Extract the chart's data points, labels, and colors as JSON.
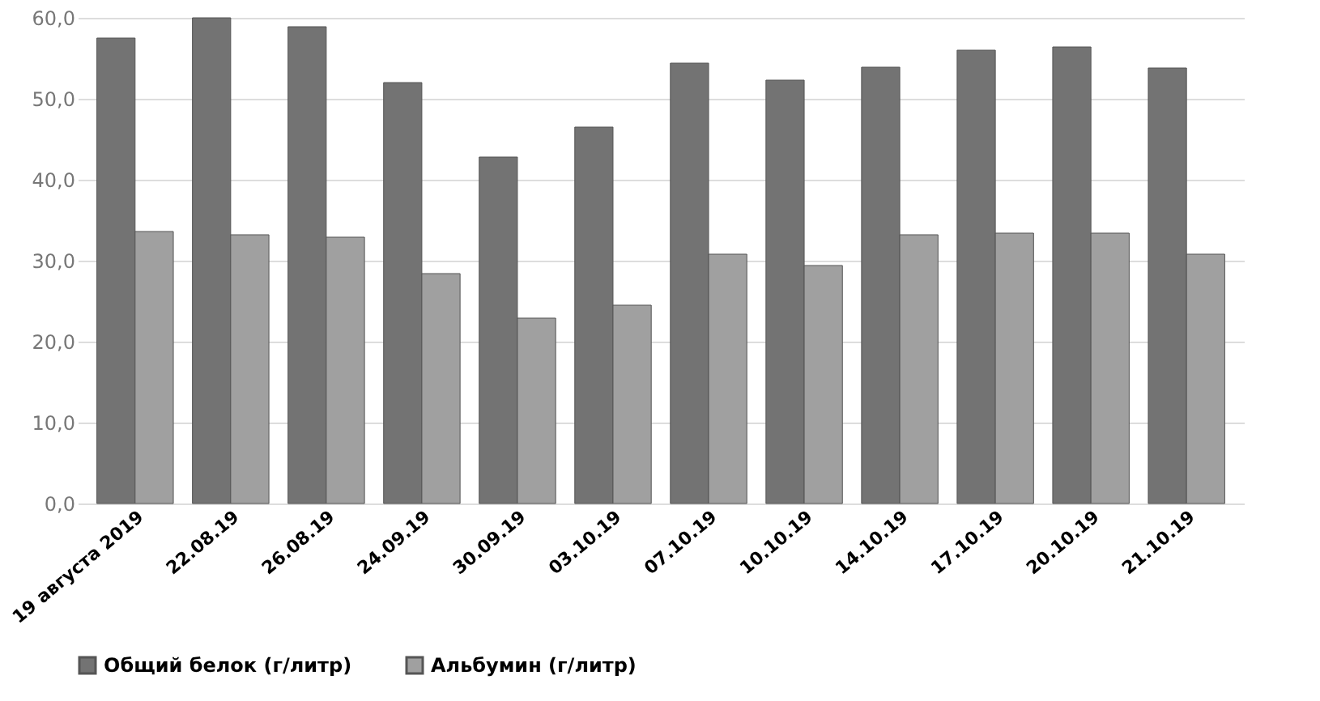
{
  "chart_data": {
    "type": "bar",
    "categories": [
      "19 августа 2019",
      "22.08.19",
      "26.08.19",
      "24.09.19",
      "30.09.19",
      "03.10.19",
      "07.10.19",
      "10.10.19",
      "14.10.19",
      "17.10.19",
      "20.10.19",
      "21.10.19"
    ],
    "series": [
      {
        "name": "Общий белок (г/литр)",
        "color": "#737373",
        "values": [
          57.5,
          60.0,
          58.9,
          52.0,
          42.8,
          46.5,
          54.4,
          52.3,
          53.9,
          56.0,
          56.4,
          53.8
        ]
      },
      {
        "name": "Альбумин (г/литр)",
        "color": "#a0a0a0",
        "values": [
          33.6,
          33.2,
          32.9,
          28.4,
          22.9,
          24.5,
          30.8,
          29.4,
          33.2,
          33.4,
          33.4,
          30.8
        ]
      }
    ],
    "ylim": [
      0,
      60
    ],
    "yticks": [
      {
        "value": 0,
        "label": "0,0"
      },
      {
        "value": 10,
        "label": "10,0"
      },
      {
        "value": 20,
        "label": "20,0"
      },
      {
        "value": 30,
        "label": "30,0"
      },
      {
        "value": 40,
        "label": "40,0"
      },
      {
        "value": 50,
        "label": "50,0"
      },
      {
        "value": 60,
        "label": "60,0"
      }
    ],
    "grid": "y",
    "legend": "bottom"
  }
}
